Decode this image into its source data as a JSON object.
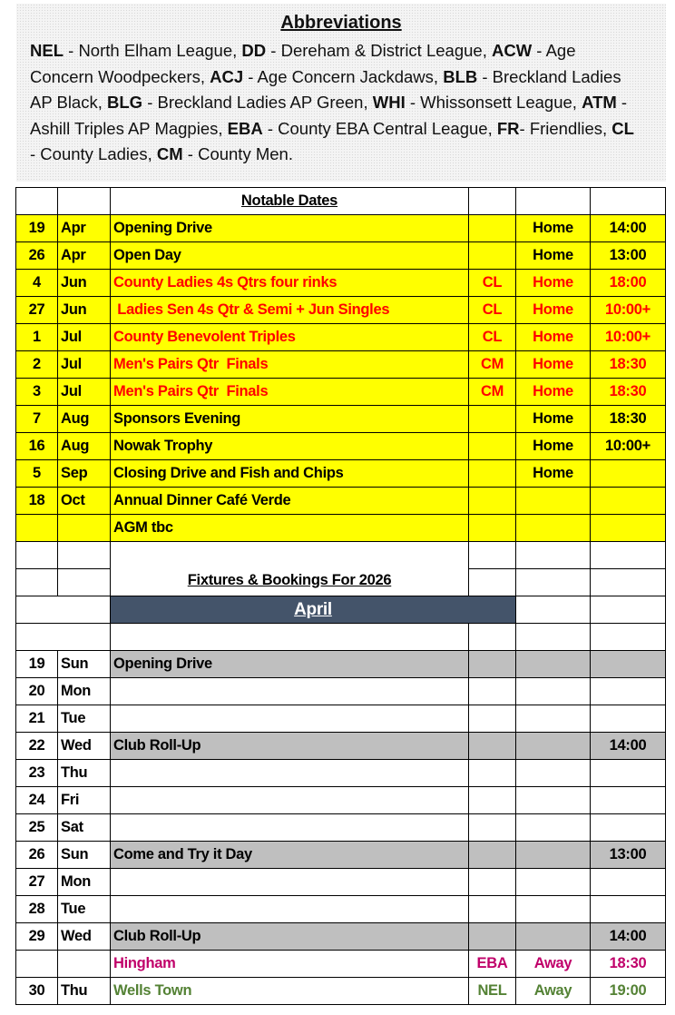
{
  "abbreviations": {
    "title": "Abbreviations",
    "items": [
      {
        "abbr": "NEL",
        "text": " - North Elham League, "
      },
      {
        "abbr": "DD",
        "text": " - Dereham & District League, "
      },
      {
        "abbr": "ACW",
        "text": " - Age Concern Woodpeckers, "
      },
      {
        "abbr": "ACJ",
        "text": " - Age Concern Jackdaws, "
      },
      {
        "abbr": "BLB",
        "text": " - Breckland Ladies AP Black, "
      },
      {
        "abbr": "BLG",
        "text": " - Breckland Ladies AP Green, "
      },
      {
        "abbr": "WHI",
        "text": " - Whissonsett League, "
      },
      {
        "abbr": "ATM",
        "text": " - Ashill Triples AP Magpies, "
      },
      {
        "abbr": "EBA",
        "text": " - County EBA Central League, "
      },
      {
        "abbr": "FR",
        "text": "- Friendlies, "
      },
      {
        "abbr": "CL",
        "text": " - County Ladies, "
      },
      {
        "abbr": "CM",
        "text": " - County Men."
      }
    ]
  },
  "notable_dates": {
    "title": "Notable Dates",
    "background": "#ffff00",
    "rows": [
      {
        "day": "19",
        "month": "Apr",
        "event": "Opening Drive",
        "venue": "Home",
        "time": "14:00"
      },
      {
        "day": "26",
        "month": "Apr",
        "event": "Open Day",
        "venue": "Home",
        "time": "13:00"
      },
      {
        "day": "4",
        "month": "Jun",
        "event": "County Ladies 4s Qtrs four rinks",
        "code": "CL",
        "venue": "Home",
        "time": "18:00",
        "color": "#ff0000"
      },
      {
        "day": "27",
        "month": "Jun",
        "event": " Ladies Sen 4s Qtr & Semi + Jun Singles",
        "code": "CL",
        "venue": "Home",
        "time": "10:00+",
        "color": "#ff0000"
      },
      {
        "day": "1",
        "month": "Jul",
        "event": "County Benevolent Triples",
        "code": "CL",
        "venue": "Home",
        "time": "10:00+",
        "color": "#ff0000"
      },
      {
        "day": "2",
        "month": "Jul",
        "event": "Men's Pairs Qtr  Finals",
        "code": "CM",
        "venue": "Home",
        "time": "18:30",
        "color": "#ff0000"
      },
      {
        "day": "3",
        "month": "Jul",
        "event": "Men's Pairs Qtr  Finals",
        "code": "CM",
        "venue": "Home",
        "time": "18:30",
        "color": "#ff0000"
      },
      {
        "day": "7",
        "month": "Aug",
        "event": "Sponsors Evening",
        "venue": "Home",
        "time": "18:30"
      },
      {
        "day": "16",
        "month": "Aug",
        "event": "Nowak Trophy",
        "venue": "Home",
        "time": "10:00+"
      },
      {
        "day": "5",
        "month": "Sep",
        "event": "Closing Drive and Fish and Chips",
        "venue": "Home"
      },
      {
        "day": "18",
        "month": "Oct",
        "event": "Annual Dinner Café Verde"
      },
      {
        "event": "AGM tbc"
      }
    ]
  },
  "fixtures": {
    "title": "Fixtures & Bookings For 2026",
    "month": "April",
    "rows": [
      {
        "day": "19",
        "weekday": "Sun",
        "event": "Opening Drive",
        "highlight": "#bfbfbf"
      },
      {
        "day": "20",
        "weekday": "Mon"
      },
      {
        "day": "21",
        "weekday": "Tue"
      },
      {
        "day": "22",
        "weekday": "Wed",
        "event": "Club Roll-Up",
        "time": "14:00",
        "highlight": "#bfbfbf"
      },
      {
        "day": "23",
        "weekday": "Thu"
      },
      {
        "day": "24",
        "weekday": "Fri"
      },
      {
        "day": "25",
        "weekday": "Sat"
      },
      {
        "day": "26",
        "weekday": "Sun",
        "event": "Come and Try it Day",
        "time": "13:00",
        "highlight": "#bfbfbf"
      },
      {
        "day": "27",
        "weekday": "Mon"
      },
      {
        "day": "28",
        "weekday": "Tue"
      },
      {
        "day": "29",
        "weekday": "Wed",
        "event": "Club Roll-Up",
        "time": "14:00",
        "highlight": "#bfbfbf"
      },
      {
        "event": "Hingham",
        "code": "EBA",
        "venue": "Away",
        "time": "18:30",
        "color": "#c0006a"
      },
      {
        "day": "30",
        "weekday": "Thu",
        "event": "Wells Town",
        "code": "NEL",
        "venue": "Away",
        "time": "19:00",
        "color": "#548235"
      }
    ]
  }
}
